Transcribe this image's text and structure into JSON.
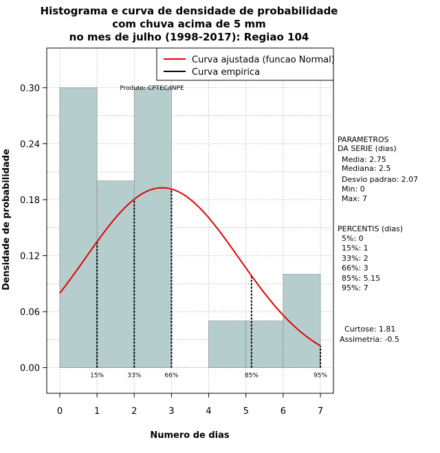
{
  "chart_data": {
    "type": "bar",
    "title_lines": [
      "Histograma e curva de densidade de probabilidade",
      "com chuva acima de 5 mm",
      "no mes de julho (1998-2017): Regiao 104"
    ],
    "xlabel": "Numero de dias",
    "ylabel": "Densidade de probabilidade",
    "xlim": [
      -0.35,
      7.35
    ],
    "ylim": [
      -0.0275,
      0.3425
    ],
    "x_ticks": [
      "0",
      "1",
      "2",
      "3",
      "4",
      "5",
      "6",
      "7"
    ],
    "y_ticks": [
      "0.00",
      "0.06",
      "0.12",
      "0.18",
      "0.24",
      "0.30"
    ],
    "y_tick_values": [
      0,
      0.06,
      0.12,
      0.18,
      0.24,
      0.3
    ],
    "bins": [
      {
        "from": 0,
        "to": 1,
        "density": 0.3
      },
      {
        "from": 1,
        "to": 2,
        "density": 0.2
      },
      {
        "from": 2,
        "to": 3,
        "density": 0.3
      },
      {
        "from": 3,
        "to": 4,
        "density": 0.0
      },
      {
        "from": 4,
        "to": 5,
        "density": 0.05
      },
      {
        "from": 5,
        "to": 6,
        "density": 0.05
      },
      {
        "from": 6,
        "to": 7,
        "density": 0.1
      }
    ],
    "normal_curve": {
      "mean": 2.75,
      "sd": 2.07,
      "from": 0,
      "to": 7
    },
    "percentile_lines": [
      {
        "label": "15%",
        "x": 1
      },
      {
        "label": "33%",
        "x": 2
      },
      {
        "label": "66%",
        "x": 3
      },
      {
        "label": "85%",
        "x": 5.15
      },
      {
        "label": "95%",
        "x": 7
      }
    ],
    "legend": {
      "position": "top-right",
      "entries": [
        {
          "label": "Curva ajustada (funcao Normal)",
          "color": "#e00000"
        },
        {
          "label": "Curva empirica",
          "color": "#000000"
        }
      ]
    },
    "product_label": "Produto: CPTEC/INPE",
    "bar_color": "#b6cdcd",
    "grid": true
  },
  "side_panel": {
    "parametros_title": [
      "PARAMETROS",
      "DA SERIE (dias)"
    ],
    "parametros": [
      "Media: 2.75",
      "Mediana: 2.5",
      "Desvio padrao: 2.07",
      "Min: 0",
      "Max: 7"
    ],
    "percentis_title": "PERCENTIS (dias)",
    "percentis": [
      "5%: 0",
      "15%: 1",
      "33%: 2",
      "66%: 3",
      "85%: 5.15",
      "95%: 7"
    ],
    "stats": [
      "Curtose: 1.81",
      "Assimetria: -0.5"
    ]
  }
}
